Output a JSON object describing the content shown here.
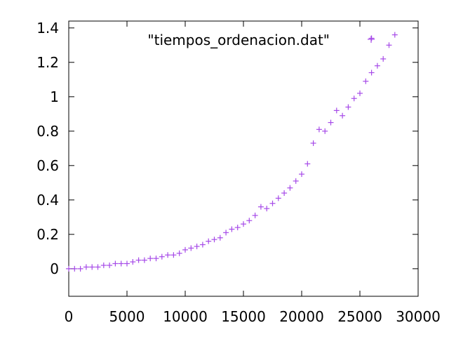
{
  "chart_data": {
    "type": "scatter",
    "title": "",
    "xlabel": "",
    "ylabel": "",
    "xlim": [
      0,
      30000
    ],
    "ylim": [
      -0.16,
      1.44
    ],
    "x_ticks": [
      0,
      5000,
      10000,
      15000,
      20000,
      25000,
      30000
    ],
    "x_tick_labels": [
      "0",
      "5000",
      "10000",
      "15000",
      "20000",
      "25000",
      "30000"
    ],
    "y_ticks": [
      0,
      0.2,
      0.4,
      0.6,
      0.8,
      1.0,
      1.2,
      1.4
    ],
    "y_tick_labels": [
      "0",
      "0.2",
      "0.4",
      "0.6",
      "0.8",
      "1",
      "1.2",
      "1.4"
    ],
    "grid": false,
    "legend": {
      "position": "top-center",
      "entries": [
        "\"tiempos_ordenacion.dat\""
      ]
    },
    "marker": "plus",
    "color": "#a64ae8",
    "series": [
      {
        "name": "\"tiempos_ordenacion.dat\"",
        "x": [
          0,
          500,
          1000,
          1500,
          2000,
          2500,
          3000,
          3500,
          4000,
          4500,
          5000,
          5500,
          6000,
          6500,
          7000,
          7500,
          8000,
          8500,
          9000,
          9500,
          10000,
          10500,
          11000,
          11500,
          12000,
          12500,
          13000,
          13500,
          14000,
          14500,
          15000,
          15500,
          16000,
          16500,
          17000,
          17500,
          18000,
          18500,
          19000,
          19500,
          20000,
          20500,
          21000,
          21500,
          22000,
          22500,
          23000,
          23500,
          24000,
          24500,
          25000,
          25500,
          26000,
          26000,
          26500,
          27000,
          27500,
          28000
        ],
        "y": [
          0.0,
          0.0,
          0.0,
          0.01,
          0.01,
          0.01,
          0.02,
          0.02,
          0.03,
          0.03,
          0.03,
          0.04,
          0.05,
          0.05,
          0.06,
          0.06,
          0.07,
          0.08,
          0.08,
          0.09,
          0.11,
          0.12,
          0.13,
          0.14,
          0.16,
          0.17,
          0.18,
          0.21,
          0.23,
          0.24,
          0.26,
          0.28,
          0.31,
          0.36,
          0.35,
          0.38,
          0.41,
          0.44,
          0.47,
          0.51,
          0.55,
          0.61,
          0.73,
          0.81,
          0.8,
          0.85,
          0.92,
          0.89,
          0.94,
          0.99,
          1.02,
          1.09,
          1.14,
          1.34,
          1.18,
          1.22,
          1.3,
          1.36
        ]
      }
    ]
  }
}
